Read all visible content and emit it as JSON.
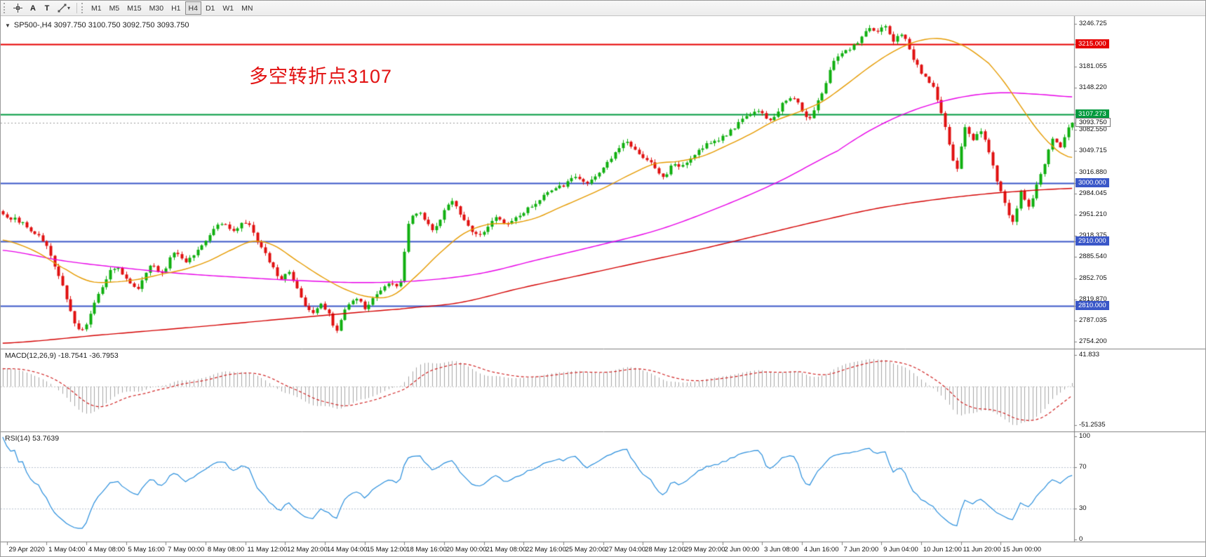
{
  "toolbar": {
    "tools": {
      "text_label": "A",
      "text_box": "T"
    },
    "icons": {
      "dropdown_caret": "▾",
      "symbol_marker": "▼"
    },
    "timeframes": [
      "M1",
      "M5",
      "M15",
      "M30",
      "H1",
      "H4",
      "D1",
      "W1",
      "MN"
    ],
    "active_timeframe": "H4"
  },
  "chart": {
    "symbol_ohlc_line": "SP500-,H4  3097.750 3100.750 3092.750 3093.750",
    "annotation": {
      "text": "多空转折点3107",
      "color": "#e21212"
    },
    "axis_labels": [
      {
        "text": "3246.725",
        "price": 3246.725
      },
      {
        "text": "3181.055",
        "price": 3181.055
      },
      {
        "text": "3148.220",
        "price": 3148.22
      },
      {
        "text": "3082.550",
        "price": 3082.55
      },
      {
        "text": "3049.715",
        "price": 3049.715
      },
      {
        "text": "3016.880",
        "price": 3016.88
      },
      {
        "text": "2984.045",
        "price": 2984.045
      },
      {
        "text": "2951.210",
        "price": 2951.21
      },
      {
        "text": "2918.375",
        "price": 2918.375
      },
      {
        "text": "2885.540",
        "price": 2885.54
      },
      {
        "text": "2852.705",
        "price": 2852.705
      },
      {
        "text": "2819.870",
        "price": 2819.87
      },
      {
        "text": "2787.035",
        "price": 2787.035
      },
      {
        "text": "2754.200",
        "price": 2754.2
      }
    ],
    "hlines": [
      {
        "label": "3215.000",
        "price": 3215.0,
        "color": "#e60000",
        "width": 1.8
      },
      {
        "label": "3107.273",
        "price": 3107.273,
        "color": "#009a3e",
        "width": 2.0
      },
      {
        "label": "3000.000",
        "price": 3000.0,
        "color": "#3a57c8",
        "width": 1.8
      },
      {
        "label": "2910.000",
        "price": 2910.0,
        "color": "#3a57c8",
        "width": 1.8
      },
      {
        "label": "2810.000",
        "price": 2810.0,
        "color": "#3a57c8",
        "width": 1.8
      }
    ],
    "current_price": {
      "label": "3093.750",
      "price": 3093.75
    },
    "time_labels": [
      "29 Apr 2020",
      "1 May 04:00",
      "4 May 08:00",
      "5 May 16:00",
      "7 May 00:00",
      "8 May 08:00",
      "11 May 12:00",
      "12 May 20:00",
      "14 May 04:00",
      "15 May 12:00",
      "18 May 16:00",
      "20 May 00:00",
      "21 May 08:00",
      "22 May 16:00",
      "25 May 20:00",
      "27 May 04:00",
      "28 May 12:00",
      "29 May 20:00",
      "2 Jun 00:00",
      "3 Jun 08:00",
      "4 Jun 16:00",
      "7 Jun 20:00",
      "9 Jun 04:00",
      "10 Jun 12:00",
      "11 Jun 20:00",
      "15 Jun 00:00"
    ]
  },
  "macd": {
    "label": "MACD(12,26,9) -18.7541 -36.7953",
    "scale_top": "41.833",
    "scale_bottom": "-51.2535"
  },
  "rsi": {
    "label": "RSI(14) 53.7639",
    "value": "53.7639",
    "color": "#2a8fdd",
    "levels": [
      70,
      30
    ],
    "scale": [
      {
        "text": "100",
        "value": 100
      },
      {
        "text": "70",
        "value": 70
      },
      {
        "text": "30",
        "value": 30
      },
      {
        "text": "0",
        "value": 0
      }
    ]
  },
  "chart_data": {
    "type": "candlestick",
    "symbol": "SP500-",
    "period": "H4",
    "candle_count": 270,
    "last_close": 3093.75,
    "price_axis": {
      "top": 3259.0,
      "bottom": 2742.5
    },
    "colors": {
      "up": "#0faf0f",
      "down": "#e01010"
    },
    "macd_scale": {
      "top": 41.833,
      "bottom": -51.2535
    },
    "macd_colors": {
      "histogram": "#a6a6a6",
      "signal": "#d02020"
    },
    "close_path_anchors": [
      [
        0,
        2950
      ],
      [
        6,
        2934
      ],
      [
        11,
        2900
      ],
      [
        15,
        2842
      ],
      [
        18,
        2786
      ],
      [
        20,
        2772
      ],
      [
        22,
        2800
      ],
      [
        25,
        2842
      ],
      [
        28,
        2868
      ],
      [
        31,
        2852
      ],
      [
        34,
        2836
      ],
      [
        37,
        2874
      ],
      [
        40,
        2860
      ],
      [
        43,
        2892
      ],
      [
        46,
        2878
      ],
      [
        49,
        2900
      ],
      [
        52,
        2918
      ],
      [
        55,
        2938
      ],
      [
        58,
        2925
      ],
      [
        61,
        2940
      ],
      [
        64,
        2912
      ],
      [
        67,
        2878
      ],
      [
        70,
        2852
      ],
      [
        72,
        2860
      ],
      [
        75,
        2822
      ],
      [
        78,
        2798
      ],
      [
        80,
        2812
      ],
      [
        82,
        2795
      ],
      [
        84,
        2772
      ],
      [
        86,
        2806
      ],
      [
        89,
        2822
      ],
      [
        91,
        2806
      ],
      [
        94,
        2830
      ],
      [
        97,
        2846
      ],
      [
        100,
        2850
      ],
      [
        102,
        2940
      ],
      [
        105,
        2952
      ],
      [
        108,
        2930
      ],
      [
        111,
        2955
      ],
      [
        113,
        2972
      ],
      [
        116,
        2940
      ],
      [
        119,
        2918
      ],
      [
        121,
        2926
      ],
      [
        124,
        2948
      ],
      [
        127,
        2938
      ],
      [
        131,
        2956
      ],
      [
        134,
        2968
      ],
      [
        137,
        2985
      ],
      [
        141,
        2996
      ],
      [
        144,
        3012
      ],
      [
        147,
        3000
      ],
      [
        151,
        3022
      ],
      [
        154,
        3046
      ],
      [
        157,
        3062
      ],
      [
        160,
        3048
      ],
      [
        163,
        3030
      ],
      [
        166,
        3012
      ],
      [
        169,
        3030
      ],
      [
        171,
        3028
      ],
      [
        174,
        3044
      ],
      [
        177,
        3060
      ],
      [
        181,
        3072
      ],
      [
        184,
        3088
      ],
      [
        187,
        3102
      ],
      [
        190,
        3112
      ],
      [
        193,
        3096
      ],
      [
        196,
        3122
      ],
      [
        199,
        3132
      ],
      [
        201,
        3114
      ],
      [
        203,
        3102
      ],
      [
        206,
        3142
      ],
      [
        209,
        3188
      ],
      [
        212,
        3205
      ],
      [
        215,
        3218
      ],
      [
        218,
        3242
      ],
      [
        220,
        3234
      ],
      [
        222,
        3246
      ],
      [
        224,
        3222
      ],
      [
        226,
        3232
      ],
      [
        228,
        3205
      ],
      [
        231,
        3172
      ],
      [
        234,
        3150
      ],
      [
        236,
        3110
      ],
      [
        238,
        3060
      ],
      [
        240,
        3025
      ],
      [
        242,
        3088
      ],
      [
        244,
        3065
      ],
      [
        246,
        3082
      ],
      [
        248,
        3045
      ],
      [
        250,
        3005
      ],
      [
        252,
        2968
      ],
      [
        254,
        2942
      ],
      [
        256,
        2985
      ],
      [
        258,
        2962
      ],
      [
        260,
        2996
      ],
      [
        262,
        3032
      ],
      [
        264,
        3072
      ],
      [
        266,
        3058
      ],
      [
        268,
        3088
      ],
      [
        269,
        3094
      ]
    ],
    "ma_orange": {
      "color": "#e69b00",
      "points": [
        [
          0,
          2912
        ],
        [
          8,
          2895
        ],
        [
          16,
          2866
        ],
        [
          22,
          2848
        ],
        [
          28,
          2847
        ],
        [
          34,
          2851
        ],
        [
          40,
          2859
        ],
        [
          46,
          2867
        ],
        [
          52,
          2880
        ],
        [
          58,
          2898
        ],
        [
          63,
          2910
        ],
        [
          68,
          2904
        ],
        [
          74,
          2880
        ],
        [
          80,
          2856
        ],
        [
          86,
          2836
        ],
        [
          92,
          2824
        ],
        [
          98,
          2826
        ],
        [
          104,
          2856
        ],
        [
          110,
          2892
        ],
        [
          116,
          2922
        ],
        [
          122,
          2936
        ],
        [
          128,
          2938
        ],
        [
          134,
          2946
        ],
        [
          140,
          2962
        ],
        [
          146,
          2978
        ],
        [
          152,
          2995
        ],
        [
          158,
          3014
        ],
        [
          164,
          3030
        ],
        [
          170,
          3034
        ],
        [
          176,
          3042
        ],
        [
          182,
          3058
        ],
        [
          188,
          3076
        ],
        [
          194,
          3096
        ],
        [
          200,
          3110
        ],
        [
          206,
          3126
        ],
        [
          212,
          3152
        ],
        [
          218,
          3180
        ],
        [
          224,
          3204
        ],
        [
          230,
          3220
        ],
        [
          236,
          3224
        ],
        [
          242,
          3212
        ],
        [
          248,
          3186
        ],
        [
          252,
          3156
        ],
        [
          256,
          3120
        ],
        [
          260,
          3085
        ],
        [
          264,
          3058
        ],
        [
          267,
          3044
        ],
        [
          269,
          3040
        ]
      ]
    },
    "ma_magenta": {
      "color": "#e800e8",
      "points": [
        [
          0,
          2896
        ],
        [
          15,
          2880
        ],
        [
          30,
          2869
        ],
        [
          45,
          2860
        ],
        [
          60,
          2854
        ],
        [
          75,
          2849
        ],
        [
          90,
          2846
        ],
        [
          105,
          2849
        ],
        [
          120,
          2860
        ],
        [
          135,
          2882
        ],
        [
          150,
          2904
        ],
        [
          165,
          2928
        ],
        [
          180,
          2962
        ],
        [
          195,
          3002
        ],
        [
          210,
          3050
        ],
        [
          220,
          3088
        ],
        [
          230,
          3115
        ],
        [
          240,
          3132
        ],
        [
          250,
          3140
        ],
        [
          260,
          3138
        ],
        [
          269,
          3134
        ]
      ]
    },
    "ma_red": {
      "color": "#d40000",
      "points": [
        [
          0,
          2752
        ],
        [
          25,
          2765
        ],
        [
          50,
          2778
        ],
        [
          75,
          2792
        ],
        [
          100,
          2805
        ],
        [
          115,
          2815
        ],
        [
          130,
          2837
        ],
        [
          145,
          2857
        ],
        [
          160,
          2877
        ],
        [
          175,
          2897
        ],
        [
          190,
          2919
        ],
        [
          205,
          2941
        ],
        [
          220,
          2961
        ],
        [
          235,
          2975
        ],
        [
          250,
          2985
        ],
        [
          269,
          2992
        ]
      ]
    }
  }
}
